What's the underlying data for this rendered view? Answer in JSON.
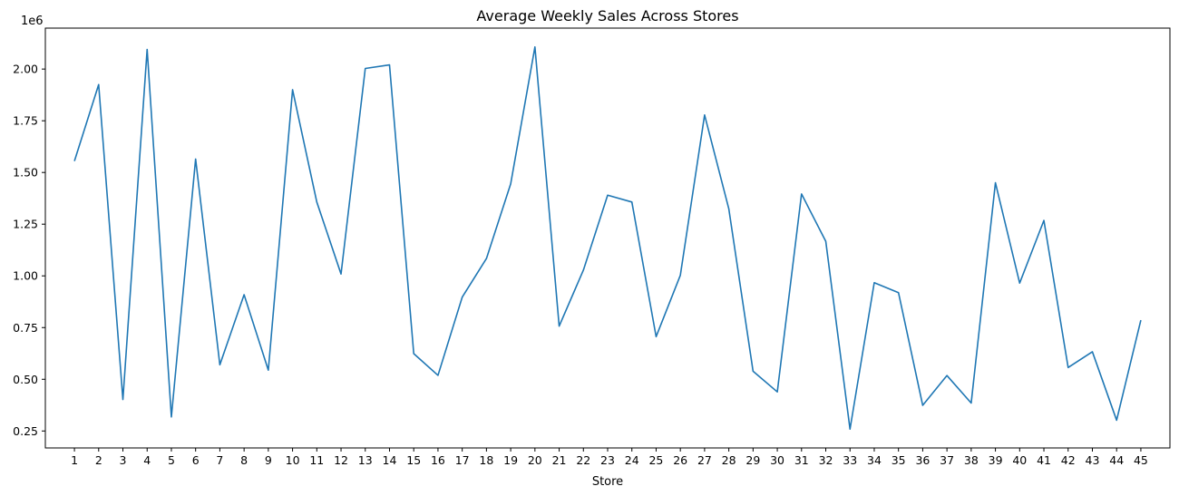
{
  "chart_data": {
    "type": "line",
    "title": "Average Weekly Sales Across Stores",
    "xlabel": "Store",
    "ylabel": "",
    "y_offset_label": "1e6",
    "x": [
      1,
      2,
      3,
      4,
      5,
      6,
      7,
      8,
      9,
      10,
      11,
      12,
      13,
      14,
      15,
      16,
      17,
      18,
      19,
      20,
      21,
      22,
      23,
      24,
      25,
      26,
      27,
      28,
      29,
      30,
      31,
      32,
      33,
      34,
      35,
      36,
      37,
      38,
      39,
      40,
      41,
      42,
      43,
      44,
      45
    ],
    "x_tick_labels": [
      "1",
      "2",
      "3",
      "4",
      "5",
      "6",
      "7",
      "8",
      "9",
      "10",
      "11",
      "12",
      "13",
      "14",
      "15",
      "16",
      "17",
      "18",
      "19",
      "20",
      "21",
      "22",
      "23",
      "24",
      "25",
      "26",
      "27",
      "28",
      "29",
      "30",
      "31",
      "32",
      "33",
      "34",
      "35",
      "36",
      "37",
      "38",
      "39",
      "40",
      "41",
      "42",
      "43",
      "44",
      "45"
    ],
    "series": [
      {
        "values": [
          1.555,
          1.925,
          0.402,
          2.095,
          0.318,
          1.565,
          0.57,
          0.909,
          0.544,
          1.9,
          1.357,
          1.009,
          2.003,
          2.02,
          0.624,
          0.519,
          0.897,
          1.084,
          1.445,
          2.107,
          0.757,
          1.028,
          1.39,
          1.357,
          0.706,
          1.003,
          1.778,
          1.324,
          0.539,
          0.439,
          1.396,
          1.167,
          0.259,
          0.967,
          0.919,
          0.374,
          0.518,
          0.385,
          1.45,
          0.965,
          1.268,
          0.557,
          0.633,
          0.302,
          0.786
        ],
        "color": "#1f77b4"
      }
    ],
    "y_ticks": [
      0.25,
      0.5,
      0.75,
      1.0,
      1.25,
      1.5,
      1.75,
      2.0
    ],
    "y_tick_labels": [
      "0.25",
      "0.50",
      "0.75",
      "1.00",
      "1.25",
      "1.50",
      "1.75",
      "2.00"
    ],
    "ylim": [
      0.168,
      2.198
    ],
    "xlim": [
      -0.2,
      46.2
    ],
    "grid": false,
    "legend": "none"
  }
}
